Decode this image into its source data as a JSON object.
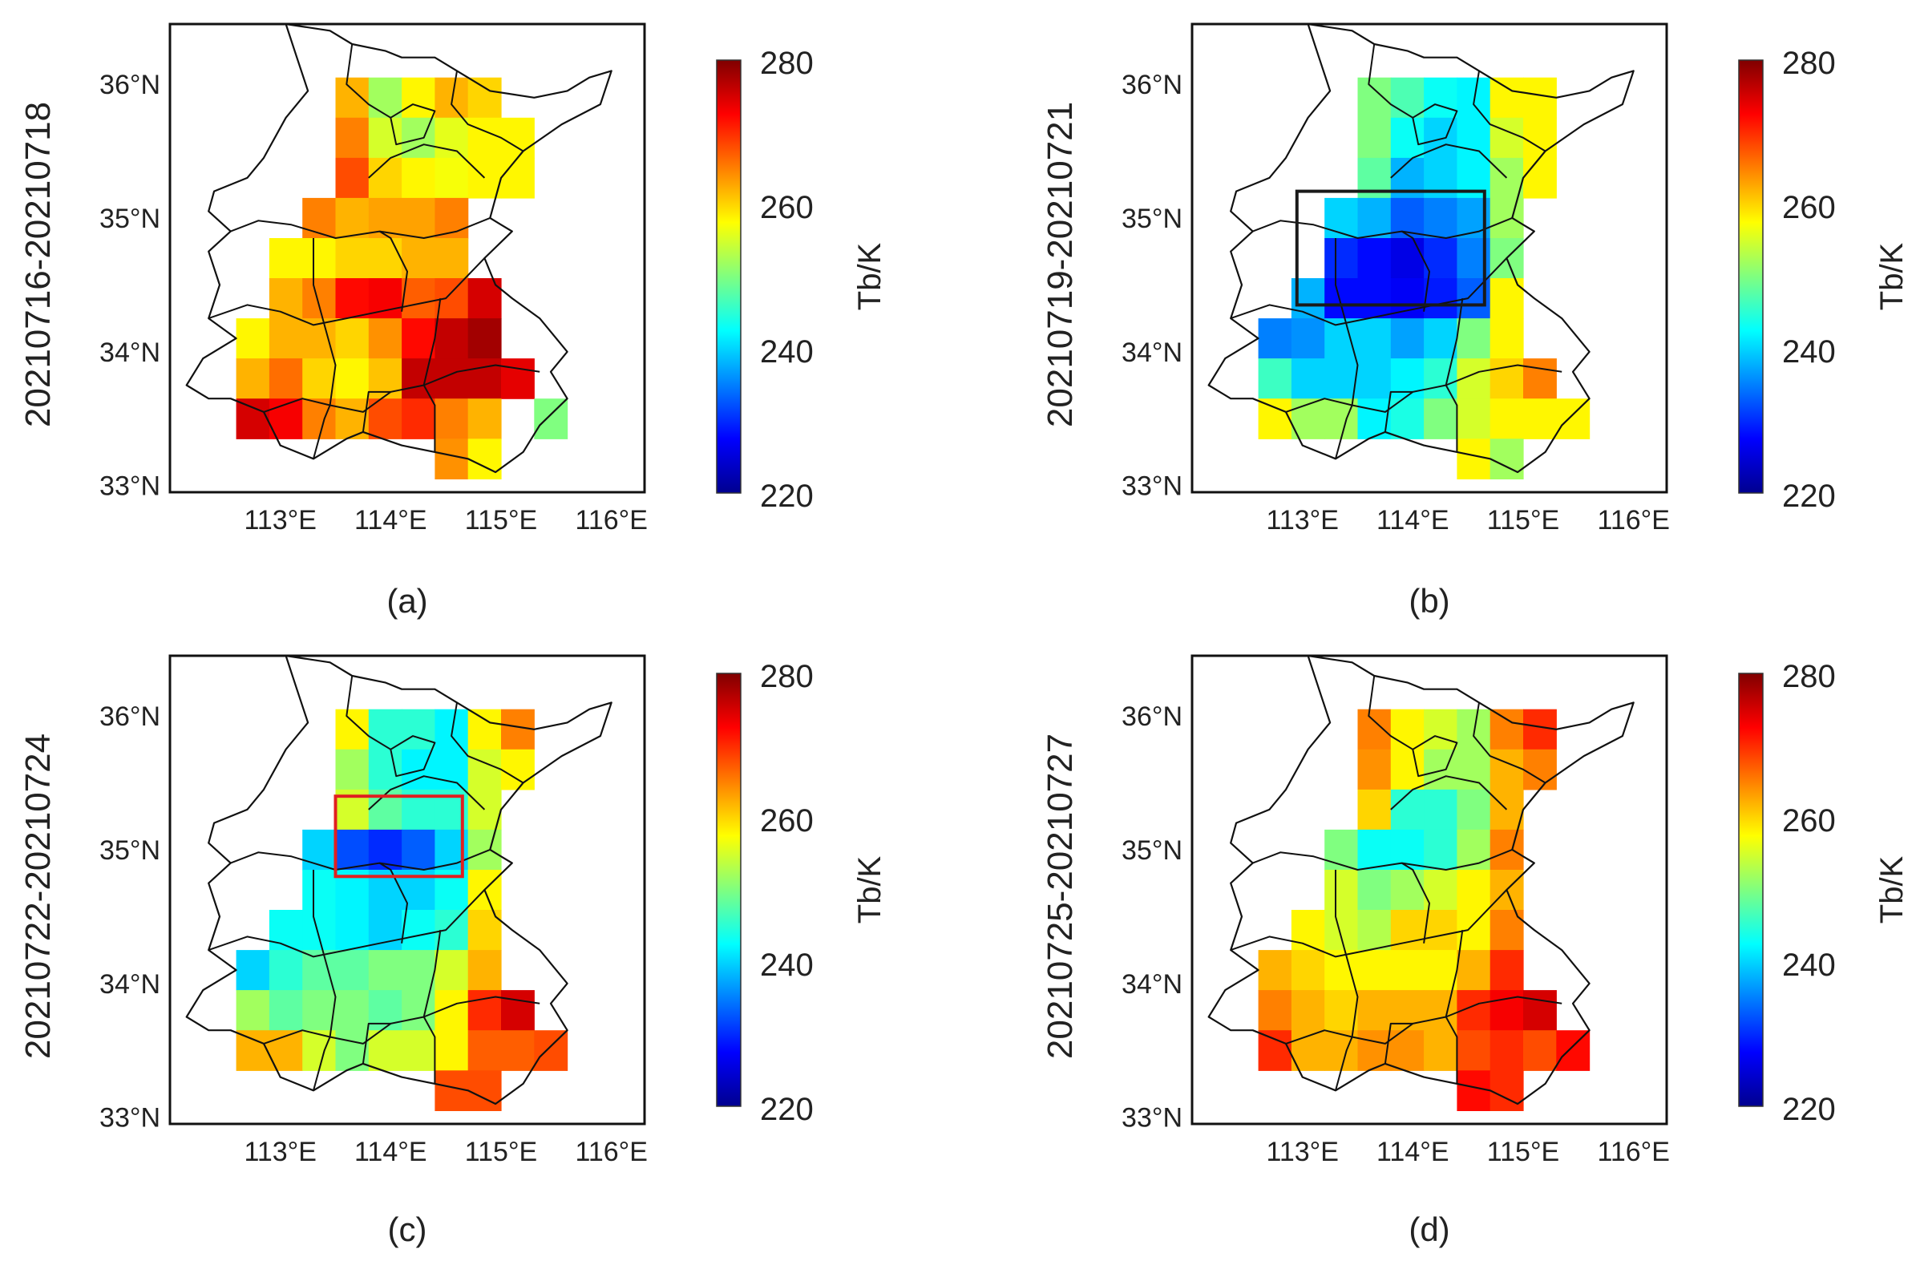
{
  "colorbar": {
    "label": "Tb/K",
    "ticks": [
      280,
      260,
      240,
      220
    ],
    "min": 220,
    "max": 280
  },
  "axes": {
    "lon_ticks": [
      "113°E",
      "114°E",
      "115°E",
      "116°E"
    ],
    "lat_ticks": [
      "36°N",
      "35°N",
      "34°N",
      "33°N"
    ],
    "lon_range": [
      112.0,
      116.3
    ],
    "lat_range": [
      32.95,
      36.45
    ]
  },
  "panels": [
    {
      "letter": "(a)",
      "period": "20210716-20210718",
      "box": null,
      "grid": [
        [
          null,
          null,
          null,
          262,
          252,
          258,
          262,
          260,
          null,
          null
        ],
        [
          null,
          null,
          null,
          265,
          255,
          252,
          256,
          258,
          258,
          null
        ],
        [
          null,
          null,
          null,
          268,
          260,
          258,
          257,
          258,
          258,
          null
        ],
        [
          null,
          null,
          265,
          262,
          263,
          263,
          265,
          null,
          null,
          null
        ],
        [
          null,
          258,
          258,
          260,
          260,
          262,
          262,
          null,
          null,
          null
        ],
        [
          null,
          262,
          265,
          272,
          273,
          267,
          268,
          275,
          null,
          null
        ],
        [
          258,
          262,
          262,
          260,
          264,
          272,
          276,
          278,
          null,
          null
        ],
        [
          262,
          266,
          260,
          258,
          261,
          276,
          276,
          276,
          274,
          null
        ],
        [
          275,
          273,
          265,
          262,
          268,
          270,
          265,
          262,
          null,
          250
        ],
        [
          null,
          null,
          null,
          null,
          null,
          null,
          264,
          258,
          null,
          null
        ]
      ]
    },
    {
      "letter": "(b)",
      "period": "20210719-20210721",
      "box": {
        "color": "#1a1a1a",
        "lon": [
          112.95,
          114.65
        ],
        "lat": [
          34.35,
          35.2
        ]
      },
      "grid": [
        [
          null,
          null,
          null,
          250,
          247,
          243,
          242,
          258,
          258,
          null
        ],
        [
          null,
          null,
          null,
          250,
          243,
          240,
          242,
          255,
          258,
          null
        ],
        [
          null,
          null,
          null,
          248,
          238,
          240,
          242,
          252,
          258,
          null
        ],
        [
          null,
          null,
          240,
          238,
          233,
          235,
          237,
          252,
          null,
          null
        ],
        [
          null,
          null,
          230,
          228,
          226,
          230,
          235,
          250,
          null,
          null
        ],
        [
          null,
          238,
          228,
          228,
          227,
          229,
          233,
          258,
          null,
          null
        ],
        [
          235,
          236,
          240,
          240,
          237,
          240,
          250,
          258,
          null,
          null
        ],
        [
          246,
          240,
          240,
          240,
          242,
          245,
          255,
          260,
          265,
          null
        ],
        [
          258,
          252,
          252,
          242,
          244,
          250,
          255,
          258,
          258,
          258
        ],
        [
          null,
          null,
          null,
          null,
          null,
          null,
          258,
          252,
          null,
          null
        ]
      ]
    },
    {
      "letter": "(c)",
      "period": "20210722-20210724",
      "box": {
        "color": "#e02020",
        "lon": [
          113.5,
          114.65
        ],
        "lat": [
          34.8,
          35.4
        ]
      },
      "grid": [
        [
          null,
          null,
          null,
          258,
          245,
          245,
          242,
          258,
          265,
          null
        ],
        [
          null,
          null,
          null,
          252,
          245,
          242,
          242,
          255,
          258,
          null
        ],
        [
          null,
          null,
          null,
          255,
          248,
          245,
          245,
          255,
          null,
          null
        ],
        [
          null,
          null,
          240,
          232,
          230,
          233,
          240,
          252,
          null,
          null
        ],
        [
          null,
          null,
          243,
          242,
          240,
          240,
          243,
          258,
          null,
          null
        ],
        [
          null,
          243,
          243,
          242,
          240,
          243,
          245,
          260,
          null,
          null
        ],
        [
          240,
          245,
          248,
          248,
          250,
          250,
          255,
          262,
          null,
          null
        ],
        [
          252,
          248,
          250,
          250,
          248,
          250,
          258,
          270,
          275,
          null
        ],
        [
          262,
          262,
          255,
          250,
          255,
          255,
          258,
          267,
          267,
          268
        ],
        [
          null,
          null,
          null,
          null,
          null,
          null,
          268,
          268,
          null,
          null
        ]
      ]
    },
    {
      "letter": "(d)",
      "period": "20210725-20210727",
      "box": null,
      "grid": [
        [
          null,
          null,
          null,
          265,
          258,
          255,
          252,
          265,
          270,
          null
        ],
        [
          null,
          null,
          null,
          264,
          258,
          252,
          252,
          262,
          265,
          null
        ],
        [
          null,
          null,
          null,
          260,
          245,
          245,
          250,
          262,
          null,
          null
        ],
        [
          null,
          null,
          250,
          243,
          243,
          245,
          252,
          265,
          null,
          null
        ],
        [
          null,
          null,
          255,
          250,
          252,
          255,
          258,
          262,
          null,
          null
        ],
        [
          null,
          258,
          255,
          253,
          260,
          260,
          258,
          265,
          null,
          null
        ],
        [
          262,
          260,
          258,
          258,
          258,
          258,
          262,
          270,
          null,
          null
        ],
        [
          265,
          262,
          260,
          262,
          262,
          262,
          270,
          273,
          275,
          null
        ],
        [
          270,
          262,
          262,
          264,
          264,
          262,
          268,
          270,
          268,
          272
        ],
        [
          null,
          null,
          null,
          null,
          null,
          null,
          272,
          270,
          null,
          null
        ]
      ]
    }
  ]
}
